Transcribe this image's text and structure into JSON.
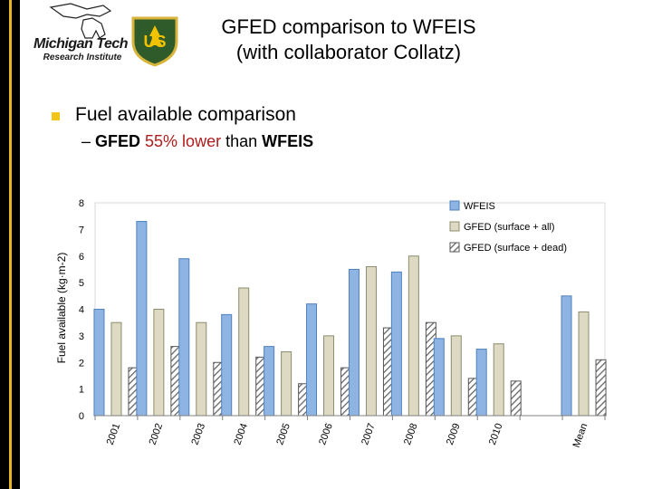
{
  "slide": {
    "title_line1": "GFED comparison to WFEIS",
    "title_line2": "(with collaborator Collatz)",
    "bullet": "Fuel available comparison",
    "sub_dash": "– ",
    "sub_part1": "GFED ",
    "sub_part2": "55% lower",
    "sub_part3": " than ",
    "sub_part4": "WFEIS",
    "logo_mtu_name": "Michigan Tech",
    "logo_mtu_sub": "Research Institute",
    "logo_usfs": "US"
  },
  "colors": {
    "wfeis": "#8eb4e3",
    "gfed_all": "#ddd9c3",
    "gfed_dead_hatch": "#666666",
    "accent": "#f0c419",
    "highlight": "#b01c1c"
  },
  "chart_data": {
    "type": "bar",
    "title": "",
    "xlabel": "",
    "ylabel": "Fuel available (kg·m-2)",
    "ylim": [
      0,
      8
    ],
    "yticks": [
      0,
      1,
      2,
      3,
      4,
      5,
      6,
      7,
      8
    ],
    "categories": [
      "2001",
      "2002",
      "2003",
      "2004",
      "2005",
      "2006",
      "2007",
      "2008",
      "2009",
      "2010",
      "",
      "Mean"
    ],
    "legend_position": "top-right",
    "series": [
      {
        "name": "WFEIS",
        "style": "solid-blue",
        "values": [
          4.0,
          7.3,
          5.9,
          3.8,
          2.6,
          4.2,
          5.5,
          5.4,
          2.9,
          2.5,
          null,
          4.5
        ]
      },
      {
        "name": "GFED (surface + all)",
        "style": "solid-tan",
        "values": [
          3.5,
          4.0,
          3.5,
          4.8,
          2.4,
          3.0,
          5.6,
          6.0,
          3.0,
          2.7,
          null,
          3.9
        ]
      },
      {
        "name": "GFED (surface + dead)",
        "style": "hatched",
        "values": [
          1.8,
          2.6,
          2.0,
          2.2,
          1.2,
          1.8,
          3.3,
          3.5,
          1.4,
          1.3,
          null,
          2.1
        ]
      }
    ]
  }
}
